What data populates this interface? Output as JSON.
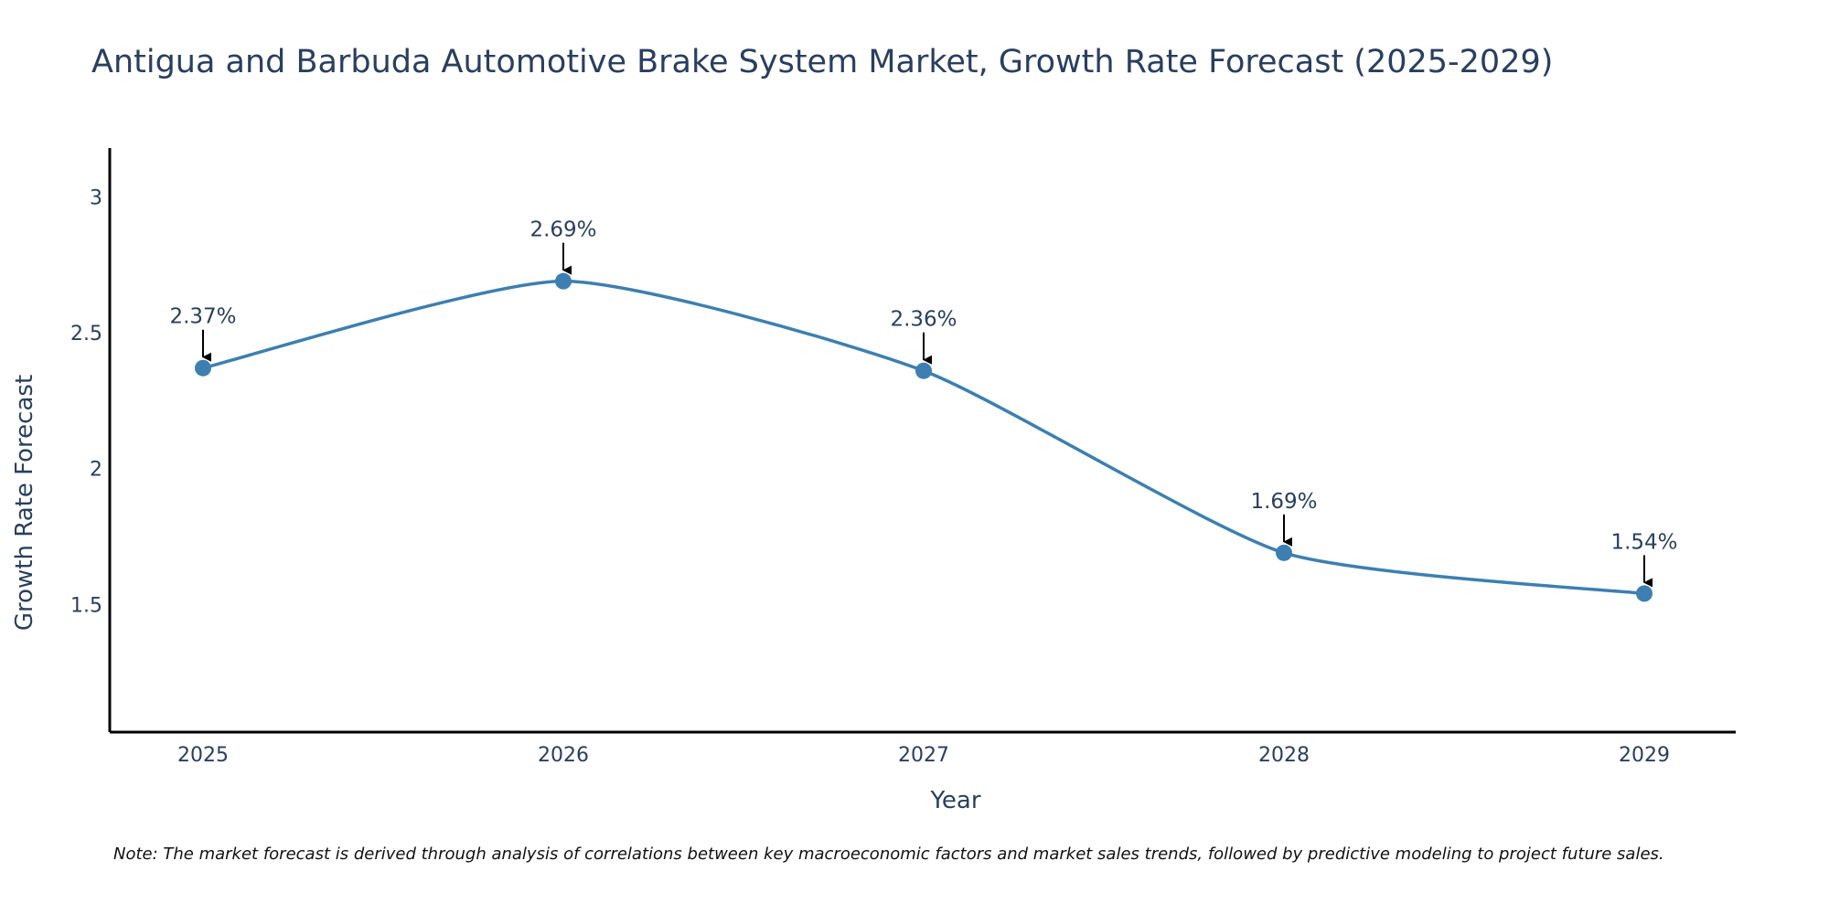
{
  "chart_data": {
    "type": "line",
    "title": "Antigua and Barbuda Automotive Brake System Market, Growth Rate Forecast (2025-2029)",
    "xlabel": "Year",
    "ylabel": "Growth Rate Forecast",
    "categories": [
      "2025",
      "2026",
      "2027",
      "2028",
      "2029"
    ],
    "values": [
      2.37,
      2.69,
      2.36,
      1.69,
      1.54
    ],
    "data_labels": [
      "2.37%",
      "2.69%",
      "2.36%",
      "1.69%",
      "1.54%"
    ],
    "y_ticks": [
      1.5,
      2,
      2.5,
      3
    ],
    "y_tick_labels": [
      "1.5",
      "2",
      "2.5",
      "3"
    ],
    "ylim": [
      1.03,
      3.18
    ],
    "grid": false,
    "line_color": "#3d7fb0",
    "marker_color": "#3d7fb0",
    "arrow_color": "#000000",
    "note": "Note: The market forecast is derived through analysis of correlations between key macroeconomic factors and market sales trends, followed by predictive modeling to project future sales."
  }
}
